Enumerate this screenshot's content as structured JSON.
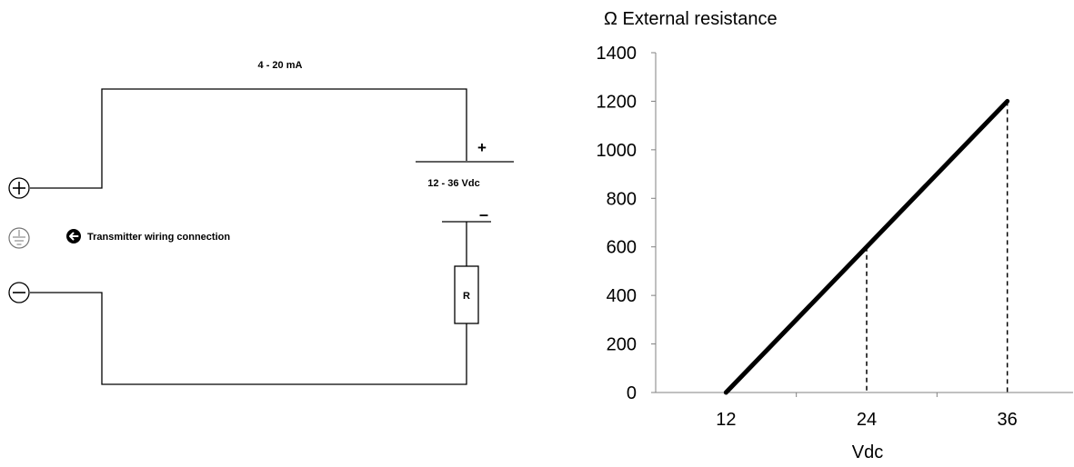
{
  "circuit": {
    "current_label": "4 - 20 mA",
    "plus_label": "+",
    "minus_label": "–",
    "supply_label": "12 - 36 Vdc",
    "resistor_label": "R",
    "terminal_plus": "+",
    "terminal_minus": "−",
    "connection_label": "Transmitter wiring connection"
  },
  "chart_data": {
    "type": "line",
    "title": "Ω External resistance",
    "xlabel": "Vdc",
    "ylabel": "Ω External resistance",
    "xlim": [
      6,
      42
    ],
    "ylim": [
      0,
      1400
    ],
    "x_ticks": [
      12,
      24,
      36
    ],
    "y_ticks": [
      0,
      200,
      400,
      600,
      800,
      1000,
      1200,
      1400
    ],
    "series": [
      {
        "x": [
          12,
          36
        ],
        "y": [
          0,
          1200
        ],
        "color": "#000000"
      }
    ],
    "reference_lines": [
      {
        "x": 24,
        "y": 600,
        "style": "dashed"
      },
      {
        "x": 36,
        "y": 1200,
        "style": "dashed"
      }
    ],
    "grid": false,
    "legend": "none"
  }
}
